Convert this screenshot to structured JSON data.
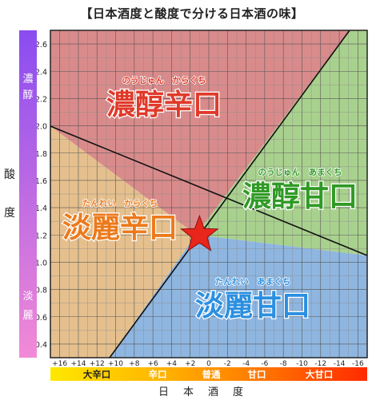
{
  "title": "【日本酒度と酸度で分ける日本酒の味】",
  "yaxis": {
    "title_chars": [
      "酸",
      "度"
    ],
    "top_label": [
      "濃",
      "醇"
    ],
    "bottom_label": [
      "淡",
      "麗"
    ],
    "ticks": [
      "0.4",
      "0.6",
      "0.8",
      "1.0",
      "1.2",
      "1.4",
      "1.6",
      "1.8",
      "2.0",
      "2.2",
      "2.4",
      "2.6"
    ],
    "range": [
      0.3,
      2.7
    ],
    "gradient": {
      "top": "#8a4cf0",
      "bottom": "#f28ad6"
    }
  },
  "xaxis": {
    "title": "日本酒度",
    "ticks": [
      "+16",
      "+14",
      "+12",
      "+10",
      "+8",
      "+6",
      "+4",
      "+2",
      "0",
      "-2",
      "-4",
      "-6",
      "-8",
      "-10",
      "-12",
      "-14",
      "-16"
    ],
    "range": [
      17,
      -17
    ],
    "bands": [
      {
        "label": "大辛口",
        "color": "#222222"
      },
      {
        "label": "辛口",
        "color": "#ffffff"
      },
      {
        "label": "普通",
        "color": "#ffffff"
      },
      {
        "label": "甘口",
        "color": "#ffffff"
      },
      {
        "label": "大甘口",
        "color": "#ffffff"
      }
    ],
    "gradient": [
      "#ffe800",
      "#ffb400",
      "#ff7a00",
      "#ff2a00"
    ]
  },
  "regions": [
    {
      "name": "濃醇辛口",
      "ruby": "のうじゅん　からくち",
      "color": "#e03a2a",
      "fill": "#d98b8b"
    },
    {
      "name": "濃醇甘口",
      "ruby": "のうじゅん　あまくち",
      "color": "#2f9a25",
      "fill": "#a9d18e"
    },
    {
      "name": "淡麗辛口",
      "ruby": "たんれい　からくち",
      "color": "#ec7a1c",
      "fill": "#e5c08e"
    },
    {
      "name": "淡麗甘口",
      "ruby": "たんれい　あまくち",
      "color": "#2b8fe0",
      "fill": "#8fb6e0"
    }
  ],
  "marker": {
    "icon": "star-icon",
    "color": "#e8261b",
    "x": 1,
    "y": 1.2
  }
}
